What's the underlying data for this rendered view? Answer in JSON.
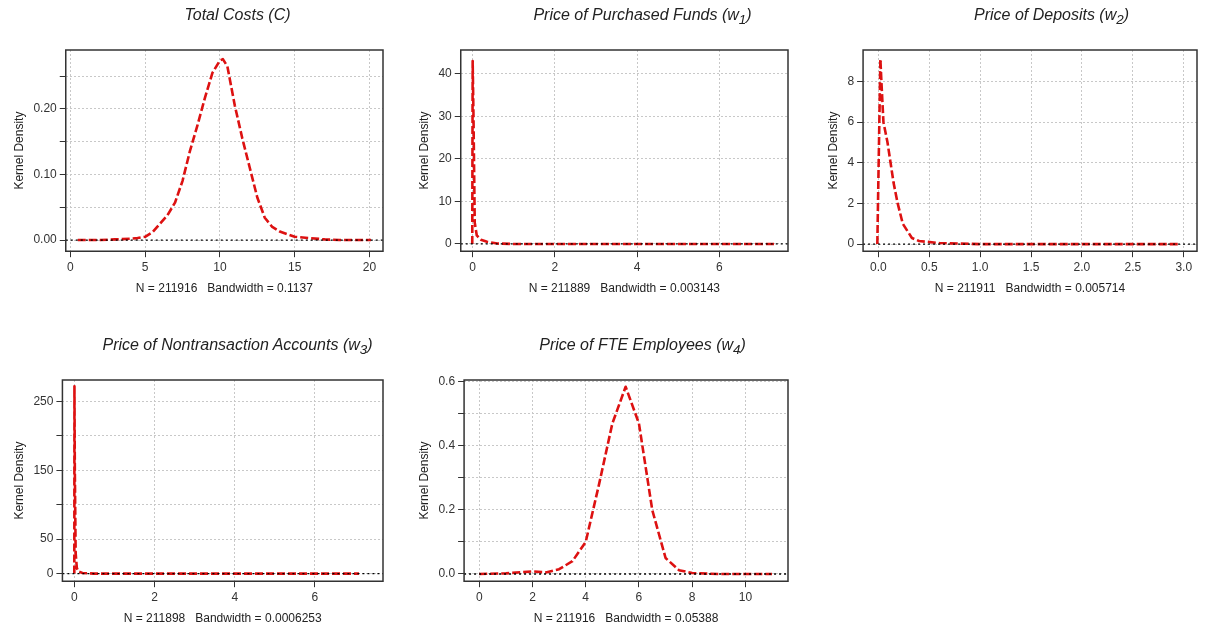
{
  "chart_data": [
    {
      "type": "line",
      "title": "Total Costs (C)",
      "xlabel": "N = 211916   Bandwidth = 0.1137",
      "ylabel": "Kernel Density",
      "x": [
        0.5,
        2,
        3,
        4,
        4.5,
        5,
        5.5,
        6,
        6.5,
        7,
        7.5,
        8,
        8.5,
        9,
        9.5,
        10,
        10.2,
        10.5,
        11,
        11.5,
        12,
        12.5,
        13,
        13.5,
        14,
        15,
        16,
        17,
        18,
        19,
        20.1
      ],
      "series": [
        {
          "color": "#dd1111",
          "values": [
            0,
            0,
            0.001,
            0.002,
            0.003,
            0.005,
            0.012,
            0.025,
            0.038,
            0.057,
            0.09,
            0.136,
            0.175,
            0.217,
            0.255,
            0.274,
            0.276,
            0.265,
            0.205,
            0.155,
            0.11,
            0.065,
            0.034,
            0.02,
            0.013,
            0.005,
            0.003,
            0.001,
            0,
            0,
            0
          ]
        }
      ],
      "xlim": [
        -0.3,
        20.9
      ],
      "ylim": [
        -0.017,
        0.29
      ],
      "xticks": [
        0,
        5,
        10,
        15,
        20
      ],
      "yticks": [
        {
          "value": 0,
          "label": "0.00"
        },
        {
          "value": 0.05,
          "label": null
        },
        {
          "value": 0.1,
          "label": "0.10"
        },
        {
          "value": 0.15,
          "label": null
        },
        {
          "value": 0.2,
          "label": "0.20"
        },
        {
          "value": 0.25,
          "label": null
        }
      ],
      "grid": true,
      "line_style": "dashed",
      "ref_lines": [
        {
          "axis": "y",
          "value": 0,
          "line_style": "dotted",
          "color": "#000000"
        }
      ]
    },
    {
      "type": "line",
      "title": "Price of Purchased Funds (w$_{1}$)",
      "xlabel": "N = 211889   Bandwidth = 0.003143",
      "ylabel": "Kernel Density",
      "x": [
        -0.01,
        0,
        0.02,
        0.05,
        0.1,
        0.2,
        0.35,
        0.6,
        1,
        2,
        3,
        4,
        5,
        6,
        7,
        7.35
      ],
      "series": [
        {
          "color": "#dd1111",
          "values": [
            0,
            43,
            30,
            5,
            2,
            1,
            0.5,
            0.1,
            0,
            0,
            0,
            0,
            0,
            0,
            0,
            0
          ]
        }
      ],
      "xlim": [
        -0.29,
        7.67
      ],
      "ylim": [
        -1.7,
        45.6
      ],
      "xticks": [
        0,
        2,
        4,
        6
      ],
      "yticks": [
        0,
        10,
        20,
        30,
        40
      ],
      "grid": true,
      "line_style": "dashed",
      "ref_lines": [
        {
          "axis": "y",
          "value": 0,
          "line_style": "dotted",
          "color": "#000000"
        }
      ]
    },
    {
      "type": "line",
      "title": "Price of Deposits (w$_{2}$)",
      "xlabel": "N = 211911   Bandwidth = 0.005714",
      "ylabel": "Kernel Density",
      "x": [
        -0.01,
        0.02,
        0.03,
        0.05,
        0.09,
        0.12,
        0.15,
        0.19,
        0.24,
        0.33,
        0.4,
        0.6,
        1,
        1.5,
        2,
        2.5,
        2.95
      ],
      "series": [
        {
          "color": "#dd1111",
          "values": [
            0,
            9.1,
            8,
            6,
            5,
            4,
            3,
            2,
            1,
            0.3,
            0.15,
            0.05,
            0,
            0,
            0,
            0,
            0
          ]
        }
      ],
      "xlim": [
        -0.15,
        3.13
      ],
      "ylim": [
        -0.35,
        9.55
      ],
      "xticks": [
        {
          "value": 0,
          "label": "0.0"
        },
        0.5,
        {
          "value": 1,
          "label": "1.0"
        },
        1.5,
        {
          "value": 2,
          "label": "2.0"
        },
        2.5,
        {
          "value": 3,
          "label": "3.0"
        }
      ],
      "yticks": [
        0,
        2,
        4,
        6,
        8
      ],
      "grid": true,
      "line_style": "dashed",
      "ref_lines": [
        {
          "axis": "y",
          "value": 0,
          "line_style": "dotted",
          "color": "#000000"
        }
      ]
    },
    {
      "type": "line",
      "title": "Price of Nontransaction Accounts (w$_{3}$)",
      "xlabel": "N = 211898   Bandwidth = 0.0006253",
      "ylabel": "Kernel Density",
      "x": [
        -0.003,
        0,
        0.01,
        0.03,
        0.06,
        0.1,
        0.2,
        0.5,
        1,
        2,
        3,
        4,
        5,
        6,
        7.1
      ],
      "series": [
        {
          "color": "#dd1111",
          "values": [
            0,
            272,
            150,
            30,
            8,
            3,
            1,
            0,
            0,
            0,
            0,
            0,
            0,
            0,
            0
          ]
        }
      ],
      "xlim": [
        -0.3,
        7.7
      ],
      "ylim": [
        -11,
        281
      ],
      "xticks": [
        0,
        2,
        4,
        6
      ],
      "yticks": [
        0,
        50,
        {
          "value": 100,
          "label": null
        },
        150,
        {
          "value": 200,
          "label": null
        },
        250
      ],
      "grid": true,
      "line_style": "dashed",
      "ref_lines": [
        {
          "axis": "y",
          "value": 0,
          "line_style": "dotted",
          "color": "#000000"
        }
      ]
    },
    {
      "type": "line",
      "title": "Price of FTE Employees (w$_{4}$)",
      "xlabel": "N = 211916   Bandwidth = 0.05388",
      "ylabel": "Kernel Density",
      "x": [
        0,
        1,
        2,
        2.5,
        3,
        3.5,
        4,
        4.5,
        5,
        5.5,
        6,
        6.5,
        7,
        7.5,
        8,
        9,
        10,
        11
      ],
      "series": [
        {
          "color": "#dd1111",
          "values": [
            0,
            0.002,
            0.008,
            0.005,
            0.015,
            0.04,
            0.1,
            0.28,
            0.47,
            0.585,
            0.47,
            0.2,
            0.05,
            0.012,
            0.003,
            0,
            0,
            0
          ]
        }
      ],
      "xlim": [
        -0.57,
        11.6
      ],
      "ylim": [
        -0.0225,
        0.606
      ],
      "xticks": [
        0,
        2,
        4,
        6,
        8,
        10
      ],
      "yticks": [
        {
          "value": 0,
          "label": "0.0"
        },
        {
          "value": 0.1,
          "label": null
        },
        {
          "value": 0.2,
          "label": "0.2"
        },
        {
          "value": 0.3,
          "label": null
        },
        {
          "value": 0.4,
          "label": "0.4"
        },
        {
          "value": 0.5,
          "label": null
        },
        {
          "value": 0.6,
          "label": "0.6"
        }
      ],
      "grid": true,
      "line_style": "dashed",
      "ref_lines": [
        {
          "axis": "y",
          "value": 0,
          "line_style": "dotted",
          "color": "#000000"
        }
      ]
    }
  ]
}
